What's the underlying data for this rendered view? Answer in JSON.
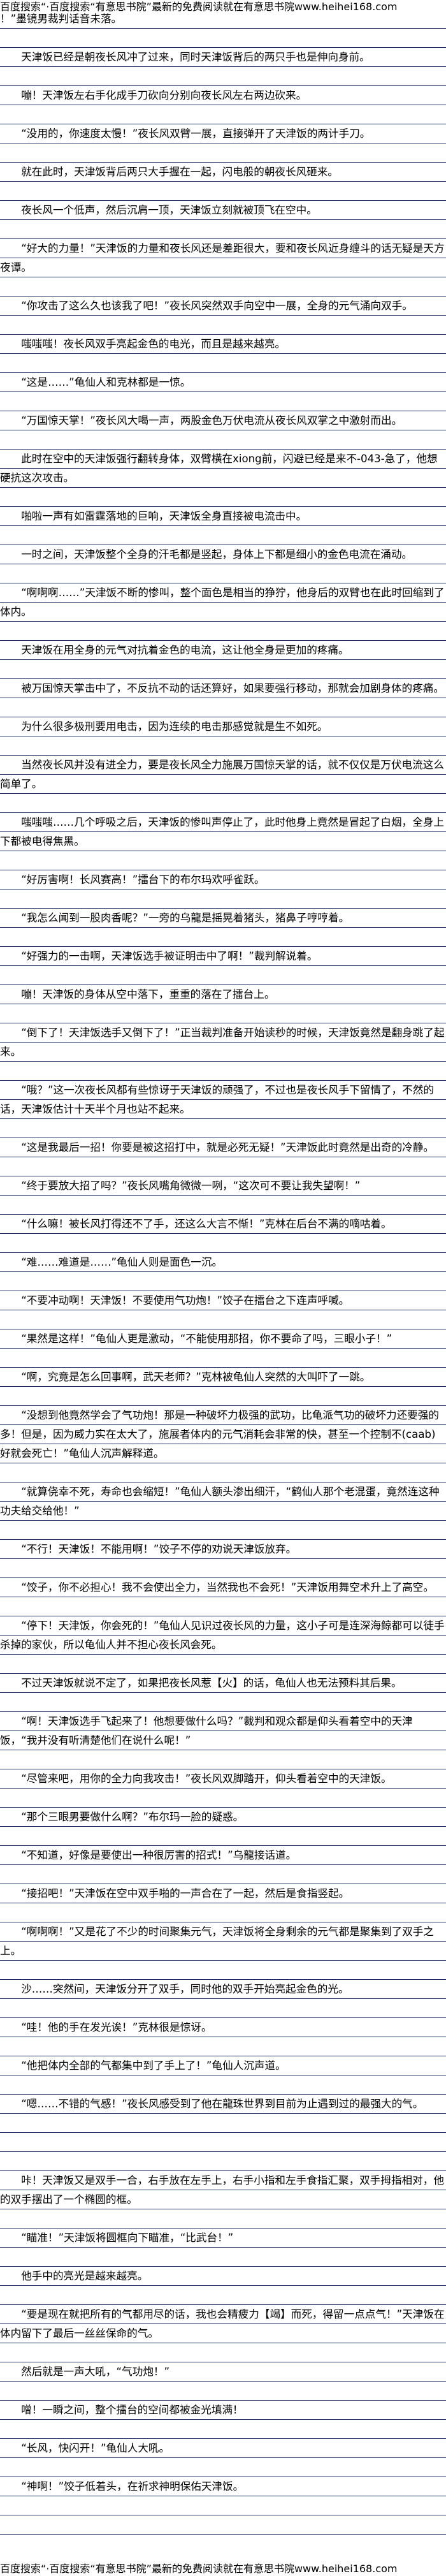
{
  "header": {
    "banner": "百度搜索“·百度搜索“有意思书院”最新的免费阅读就在有意思书院www.heihei168.com"
  },
  "footer": {
    "banner": "百度搜索“·百度搜索“有意思书院”最新的免费阅读就在有意思书院www.heihei168.com"
  },
  "paragraphs": [
    "！”墨镜男裁判话音未落。",
    "天津饭已经是朝夜长风冲了过来，同时天津饭背后的两只手也是伸向身前。",
    "嘣！天津饭左右手化成手刀砍向分别向夜长风左右两边砍来。",
    "“没用的，你速度太慢！”夜长风双臂一展，直接弹开了天津饭的两计手刀。",
    "就在此时，天津饭背后两只大手握在一起，闪电般的朝夜长风砸来。",
    "夜长风一个低声，然后沉肩一顶，天津饭立刻就被顶飞在空中。",
    "“好大的力量！”天津饭的力量和夜长风还是差距很大，要和夜长风近身缠斗的话无疑是天方夜谭。",
    "“你攻击了这么久也该我了吧！”夜长风突然双手向空中一展，全身的元气涌向双手。",
    "嗤嗤嗤！夜长风双手亮起金色的电光，而且是越来越亮。",
    "“这是……”龟仙人和克林都是一惊。",
    "“万国惊天掌！”夜长风大喝一声，两股金色万伏电流从夜长风双掌之中激射而出。",
    "此时在空中的天津饭强行翻转身体，双臂横在xiong前，闪避已经是来不-043-急了，他想硬抗这次攻击。",
    "啪啦一声有如雷霆落地的巨响，天津饭全身直接被电流击中。",
    "一时之间，天津饭整个全身的汗毛都是竖起，身体上下都是细小的金色电流在涌动。",
    "“啊啊啊……”天津饭不断的惨叫，整个面色是相当的狰狞，他身后的双臂也在此时回缩到了体内。",
    "天津饭在用全身的元气对抗着金色的电流，这让他全身是更加的疼痛。",
    "被万国惊天掌击中了，不反抗不动的话还算好，如果要强行移动，那就会加剧身体的疼痛。",
    "为什么很多极刑要用电击，因为连续的电击那感觉就是生不如死。",
    "当然夜长风并没有进全力，要是夜长风全力施展万国惊天掌的话，就不仅仅是万伏电流这么简单了。",
    "嗤嗤嗤……几个呼吸之后，天津饭的惨叫声停止了，此时他身上竟然是冒起了白烟，全身上下都被电得焦黑。",
    "“好厉害啊！长风赛高！”擂台下的布尔玛欢呼雀跃。",
    "“我怎么闻到一股肉香呢？”一旁的乌龍是摇晃着猪头，猪鼻子哼哼着。",
    "“好强力的一击啊，天津饭选手被证明击中了啊！”裁判解说着。",
    "嘣！天津饭的身体从空中落下，重重的落在了擂台上。",
    "“倒下了！天津饭选手又倒下了！”正当裁判准备开始读秒的时候，天津饭竟然是翻身跳了起来。",
    "“哦？”这一次夜长风都有些惊讶于天津饭的顽强了，不过也是夜长风手下留情了，不然的话，天津饭估计十天半个月也站不起来。",
    "“这是我最后一招！你要是被这招打中，就是必死无疑！”天津饭此时竟然是出奇的冷静。",
    "“终于要放大招了吗？”夜长风嘴角微微一咧，“这次可不要让我失望啊！”",
    "“什么嘛！被长风打得还不了手，还这么大言不惭！”克林在后台不满的嘀咕着。",
    "“难……难道是……”龟仙人则是面色一沉。",
    "“不要冲动啊！天津饭！不要使用气功炮！”饺子在擂台之下连声呼喊。",
    "“果然是这样！”龟仙人更是激动，“不能使用那招，你不要命了吗，三眼小子！”",
    "“啊，究竟是怎么回事啊，武天老师？”克林被龟仙人突然的大叫吓了一跳。",
    "“没想到他竟然学会了气功炮！那是一种破坏力极强的武功，比龟派气功的破坏力还要强的多！但是，因为威力实在太大了，施展者体内的元气消耗会非常的快，甚至一个控制不(caab)好就会死亡！”龟仙人沉声解释道。",
    "“就算侥幸不死，寿命也会缩短！”龟仙人额头渗出细汗，“鹤仙人那个老混蛋，竟然连这种功夫给交给他！”",
    "“不行！天津饭！不能用啊！”饺子不停的劝说天津饭放弃。",
    "“饺子，你不必担心！我不会使出全力，当然我也不会死！”天津饭用舞空术升上了高空。",
    "“停下！天津饭，你会死的！”龟仙人见识过夜长风的力量，这小子可是连深海鲸都可以徒手杀掉的家伙，所以龟仙人并不担心夜长风会死。",
    "不过天津饭就说不定了，如果把夜长风惹【火】的话，龟仙人也无法预料其后果。",
    "“啊！天津饭选手飞起来了！他想要做什么吗？”裁判和观众都是仰头看着空中的天津饭，“我并没有听清楚他们在说什么呢！”",
    "“尽管来吧，用你的全力向我攻击！”夜长风双脚踏开，仰头看着空中的天津饭。",
    "“那个三眼男要做什么啊？”布尔玛一脸的疑惑。",
    "“不知道，好像是要使出一种很厉害的招式！”乌龍接话道。",
    "“接招吧！”天津饭在空中双手啪的一声合在了一起，然后是食指竖起。",
    "“啊啊啊！”又是花了不少的时间聚集元气，天津饭将全身剩余的元气都是聚集到了双手之上。",
    "沙……突然间，天津饭分开了双手，同时他的双手开始亮起金色的光。",
    "“哇！他的手在发光诶！”克林很是惊讶。",
    "“他把体内全部的气都集中到了手上了！”龟仙人沉声道。",
    "“嗯……不错的气感！”夜长风感受到了他在龍珠世界到目前为止遇到过的最强大的气。",
    "",
    "咔！天津饭又是双手一合，右手放在左手上，右手小指和左手食指汇聚，双手拇指相对，他的双手摆出了一个椭圆的框。",
    "“瞄准！”天津饭将圆框向下瞄准，“比武台！”",
    "他手中的亮光是越来越亮。",
    "“要是现在就把所有的气都用尽的话，我也会精疲力【竭】而死，得留一点点气！”天津饭在体内留下了最后一丝丝保命的气。",
    "然后就是一声大吼，“气功炮！”",
    "噌！一瞬之间，整个擂台的空间都被金光填满！",
    "“长风，快闪开！”龟仙人大吼。",
    "“神啊！”饺子低着头，在祈求神明保佑天津饭。"
  ]
}
